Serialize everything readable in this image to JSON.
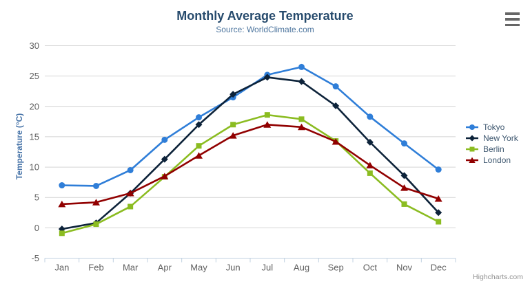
{
  "header": {
    "title": "Monthly Average Temperature",
    "subtitle": "Source: WorldClimate.com"
  },
  "credits": "Highcharts.com",
  "export_menu": {
    "icon": "hamburger-icon"
  },
  "colors": {
    "title": "#274b6d",
    "subtitle": "#4d759e",
    "axis_title": "#4572a7",
    "axis_labels": "#606060",
    "gridline": "#d4d4d4",
    "axis_line": "#c0d0e0",
    "legend_text": "#3e576f",
    "credits": "#909090"
  },
  "chart_data": {
    "type": "line",
    "title": "Monthly Average Temperature",
    "subtitle": "Source: WorldClimate.com",
    "categories": [
      "Jan",
      "Feb",
      "Mar",
      "Apr",
      "May",
      "Jun",
      "Jul",
      "Aug",
      "Sep",
      "Oct",
      "Nov",
      "Dec"
    ],
    "series": [
      {
        "name": "Tokyo",
        "color": "#2f7ed8",
        "marker": "circle",
        "values": [
          7.0,
          6.9,
          9.5,
          14.5,
          18.2,
          21.5,
          25.2,
          26.5,
          23.3,
          18.3,
          13.9,
          9.6
        ]
      },
      {
        "name": "New York",
        "color": "#0d233a",
        "marker": "diamond",
        "values": [
          -0.2,
          0.8,
          5.7,
          11.3,
          17.0,
          22.0,
          24.8,
          24.1,
          20.1,
          14.1,
          8.6,
          2.5
        ]
      },
      {
        "name": "Berlin",
        "color": "#8bbc21",
        "marker": "square",
        "values": [
          -0.9,
          0.6,
          3.5,
          8.4,
          13.5,
          17.0,
          18.6,
          17.9,
          14.3,
          9.0,
          3.9,
          1.0
        ]
      },
      {
        "name": "London",
        "color": "#910000",
        "marker": "triangle",
        "values": [
          3.9,
          4.2,
          5.7,
          8.5,
          11.9,
          15.2,
          17.0,
          16.6,
          14.2,
          10.3,
          6.6,
          4.8
        ]
      }
    ],
    "xlabel": "",
    "ylabel": "Temperature (°C)",
    "ylim": [
      -5,
      30
    ],
    "ytick_step": 5,
    "grid": true,
    "legend_position": "right"
  }
}
